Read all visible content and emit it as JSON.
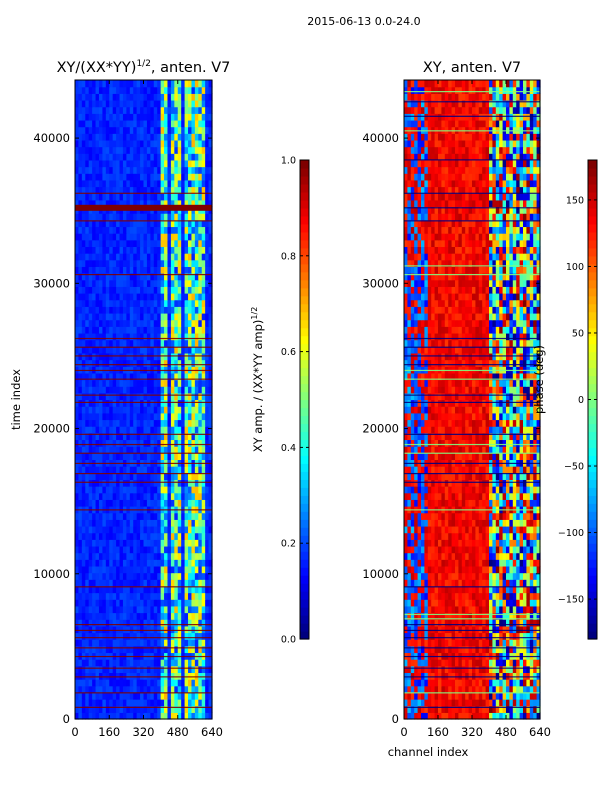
{
  "suptitle": "2015-06-13 0.0-24.0",
  "colors": {
    "bg": "#ffffff",
    "axis": "#000000",
    "jet": [
      "#00007f",
      "#0000ff",
      "#007fff",
      "#00ffff",
      "#7fff7f",
      "#ffff00",
      "#ff7f00",
      "#ff0000",
      "#7f0000"
    ]
  },
  "chart_data": [
    {
      "type": "heatmap",
      "title": "XY/(XX*YY)",
      "title_exp": "1/2",
      "title_suffix": ", anten. V7",
      "xlabel": "",
      "ylabel": "time index",
      "xlim": [
        0,
        640
      ],
      "ylim": [
        0,
        44000
      ],
      "xticks": [
        0,
        160,
        320,
        480,
        640
      ],
      "yticks": [
        0,
        10000,
        20000,
        30000,
        40000
      ],
      "colorbar": {
        "label": "XY amp. / (XX*YY amp)",
        "label_exp": "1/2",
        "range": [
          0.0,
          1.0
        ],
        "ticks": [
          0.0,
          0.2,
          0.4,
          0.6,
          0.8,
          1.0
        ],
        "tick_labels": [
          "0.0",
          "0.2",
          "0.4",
          "0.6",
          "0.8",
          "1.0"
        ]
      },
      "flagged_rows_value": 1.0,
      "background_value": 0.12,
      "bright_channel_range": [
        390,
        600
      ],
      "band_gaps": [
        [
          430,
          445
        ],
        [
          495,
          505
        ],
        [
          550,
          558
        ],
        [
          600,
          640
        ]
      ],
      "flagged_times": [
        800,
        1800,
        2900,
        3500,
        4300,
        4900,
        5600,
        6100,
        6500,
        9100,
        14400,
        16300,
        16900,
        17600,
        18300,
        18900,
        19600,
        21800,
        22300,
        23400,
        24000,
        24400,
        25000,
        25600,
        26200,
        30600,
        34300,
        35200,
        36200
      ]
    },
    {
      "type": "heatmap",
      "title": "XY, anten. V7",
      "xlabel": "channel index",
      "ylabel": "",
      "xlim": [
        0,
        640
      ],
      "ylim": [
        0,
        44000
      ],
      "xticks": [
        0,
        160,
        320,
        480,
        640
      ],
      "yticks": [
        0,
        10000,
        20000,
        30000,
        40000
      ],
      "colorbar": {
        "label": "phase (deg)",
        "range": [
          -180,
          180
        ],
        "ticks": [
          -150,
          -100,
          -50,
          0,
          50,
          100,
          150
        ],
        "tick_labels": [
          "−150",
          "−100",
          "−50",
          "0",
          "50",
          "100",
          "150"
        ]
      },
      "phase_bulk_deg": 160,
      "bright_channel_range": [
        390,
        640
      ],
      "flagged_times": [
        800,
        1800,
        2900,
        3500,
        4300,
        4900,
        5600,
        6100,
        6500,
        6900,
        7200,
        9100,
        14400,
        16300,
        16900,
        17600,
        18300,
        18900,
        19600,
        21800,
        22300,
        23400,
        24000,
        24400,
        25000,
        25600,
        26200,
        30600,
        31200,
        34300,
        35200,
        36200,
        38500,
        40500,
        41500,
        42500,
        43200
      ]
    }
  ]
}
